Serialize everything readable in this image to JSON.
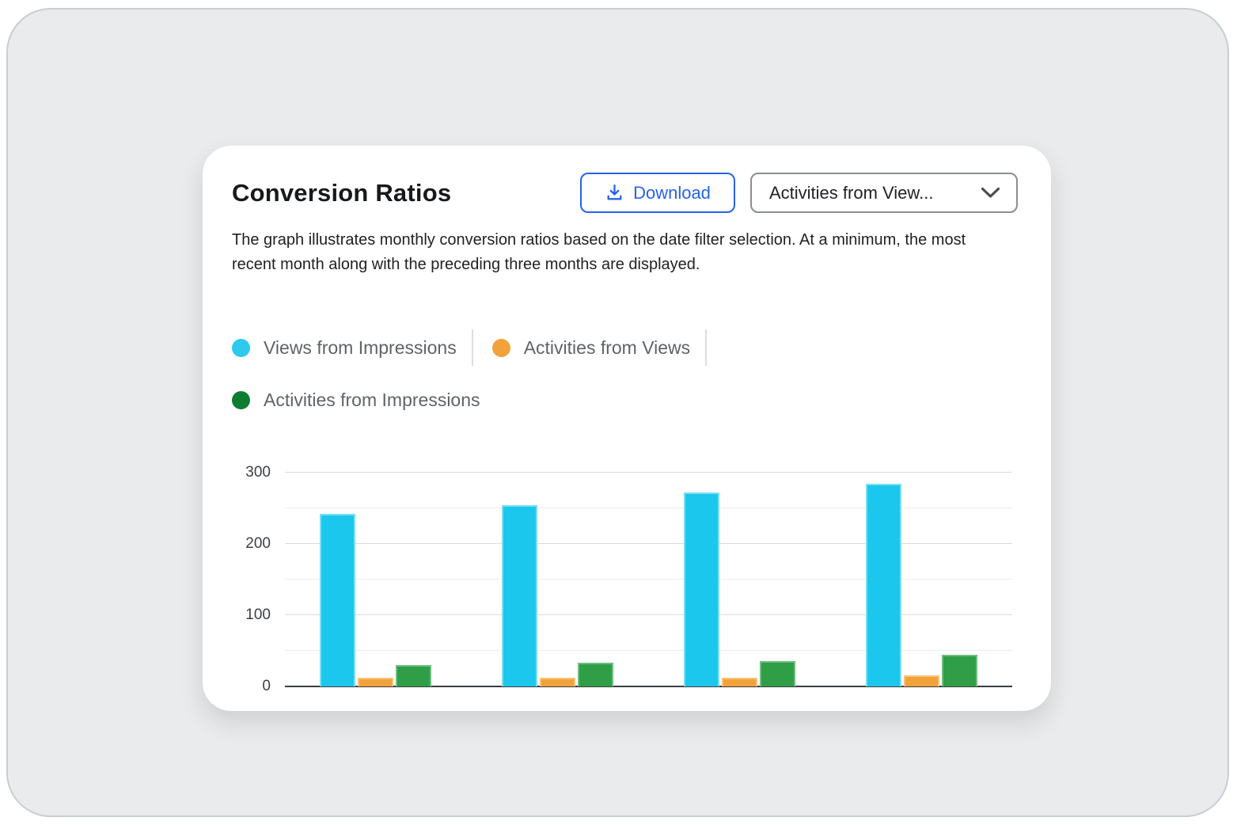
{
  "page": {
    "background_color": "#E9EBEC",
    "frame_border_color": "#C9CED2"
  },
  "card": {
    "title": "Conversion Ratios",
    "download_button": {
      "label": "Download",
      "color": "#2563EB"
    },
    "filter_dropdown": {
      "value": "Activities from View..."
    },
    "description": "The graph illustrates monthly conversion ratios based on the date filter selection. At a minimum, the most recent month along with the preceding three months are displayed."
  },
  "legend": {
    "items": [
      {
        "label": "Views from Impressions",
        "color": "#2FC9EF"
      },
      {
        "label": "Activities from Views",
        "color": "#F2A23B"
      },
      {
        "label": "Activities from Impressions",
        "color": "#0E7D31"
      }
    ]
  },
  "chart_data": {
    "type": "bar",
    "title": "Conversion Ratios",
    "series": [
      {
        "name": "Views from Impressions",
        "color": "#1BC7EC",
        "edge_color": "#7ADFF4",
        "values": [
          242,
          255,
          272,
          284
        ]
      },
      {
        "name": "Activities from Views",
        "color": "#F2A23B",
        "edge_color": "#F8C377",
        "values": [
          12,
          12,
          12,
          16
        ]
      },
      {
        "name": "Activities from Impressions",
        "color": "#2F9E47",
        "edge_color": "#6FBE80",
        "values": [
          30,
          33,
          36,
          45
        ]
      }
    ],
    "group_count": 4,
    "x_tick_labels_visible": false,
    "ylim": [
      0,
      300
    ],
    "yticks": [
      0,
      100,
      200,
      300
    ],
    "grid_step": 50,
    "grid": true,
    "legend_position": "top-left"
  }
}
